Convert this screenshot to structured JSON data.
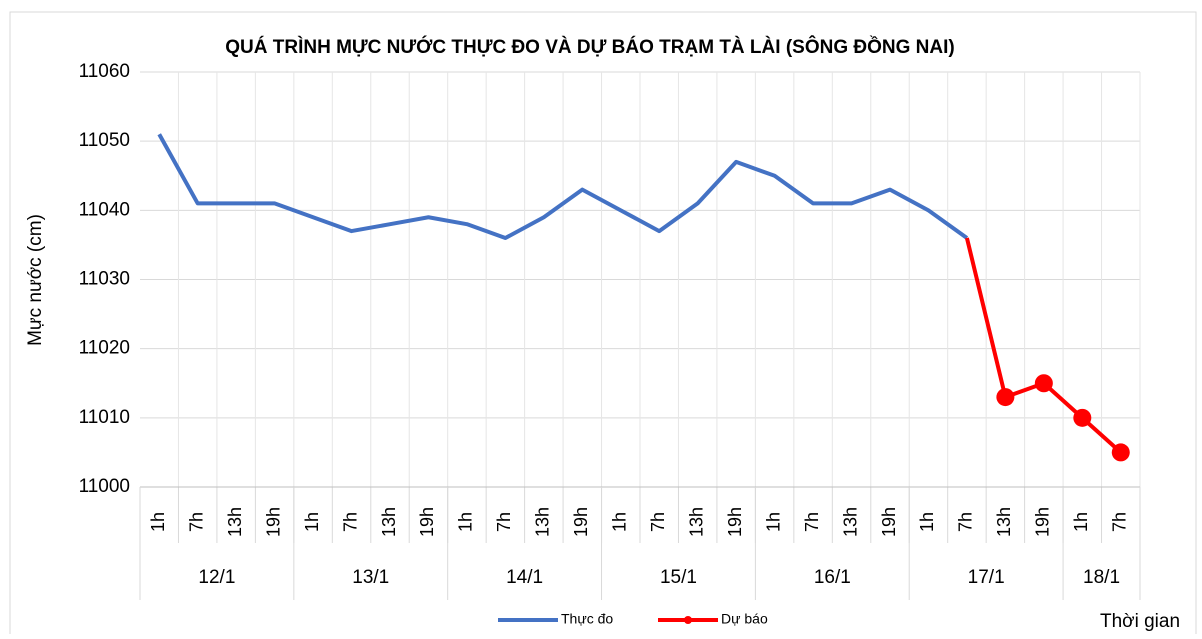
{
  "chart_data": {
    "type": "line",
    "title": "QUÁ TRÌNH MỰC NƯỚC THỰC ĐO VÀ DỰ BÁO TRẠM TÀ LÀI (SÔNG ĐỒNG NAI)",
    "y_label": "Mực nước (cm)",
    "x_label": "Thời gian",
    "categories": [
      "1h",
      "7h",
      "13h",
      "19h",
      "1h",
      "7h",
      "13h",
      "19h",
      "1h",
      "7h",
      "13h",
      "19h",
      "1h",
      "7h",
      "13h",
      "19h",
      "1h",
      "7h",
      "13h",
      "19h",
      "1h",
      "7h",
      "13h",
      "19h",
      "1h",
      "7h"
    ],
    "groups": [
      {
        "label": "12/1",
        "count": 4
      },
      {
        "label": "13/1",
        "count": 4
      },
      {
        "label": "14/1",
        "count": 4
      },
      {
        "label": "15/1",
        "count": 4
      },
      {
        "label": "16/1",
        "count": 4
      },
      {
        "label": "17/1",
        "count": 4
      },
      {
        "label": "18/1",
        "count": 2
      }
    ],
    "series": [
      {
        "name": "Thực đo",
        "color": "#4472c4",
        "values": [
          11051,
          11041,
          11041,
          11041,
          11039,
          11037,
          11038,
          11039,
          11038,
          11036,
          11039,
          11043,
          11040,
          11037,
          11041,
          11047,
          11045,
          11041,
          11041,
          11043,
          11040,
          11036,
          null,
          null,
          null,
          null
        ]
      },
      {
        "name": "Dự báo",
        "color": "#ff0000",
        "values": [
          null,
          null,
          null,
          null,
          null,
          null,
          null,
          null,
          null,
          null,
          null,
          null,
          null,
          null,
          null,
          null,
          null,
          null,
          null,
          null,
          null,
          11036,
          11013,
          11015,
          11010,
          11005
        ]
      }
    ],
    "ylim": [
      11000,
      11060
    ],
    "yticks": [
      11000,
      11010,
      11020,
      11030,
      11040,
      11050,
      11060
    ],
    "grid": true
  }
}
